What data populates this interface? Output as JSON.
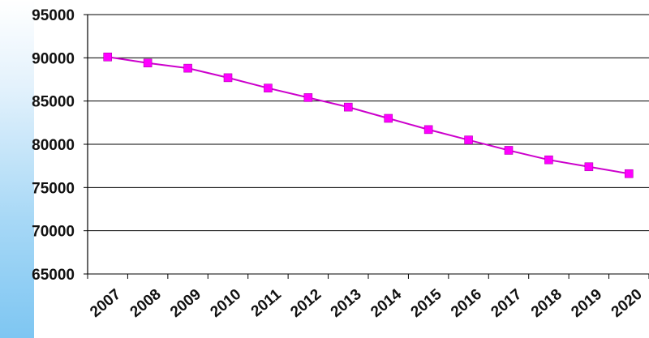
{
  "chart_data": {
    "type": "line",
    "title": "",
    "xlabel": "",
    "ylabel": "",
    "categories": [
      "2007",
      "2008",
      "2009",
      "2010",
      "2011",
      "2012",
      "2013",
      "2014",
      "2015",
      "2016",
      "2017",
      "2018",
      "2019",
      "2020"
    ],
    "series": [
      {
        "values": [
          90100,
          89400,
          88800,
          87700,
          86500,
          85400,
          84300,
          83000,
          81700,
          80500,
          79300,
          78200,
          77400,
          76600
        ]
      }
    ],
    "ylim": [
      65000,
      95000
    ],
    "yticks": [
      "65000",
      "70000",
      "75000",
      "80000",
      "85000",
      "90000",
      "95000"
    ],
    "grid": "horizontal",
    "legend": "none",
    "line_color": "#cc00cc",
    "marker_color": "#ff00ff",
    "marker": "square",
    "background_accent": "#7ec6f2"
  }
}
